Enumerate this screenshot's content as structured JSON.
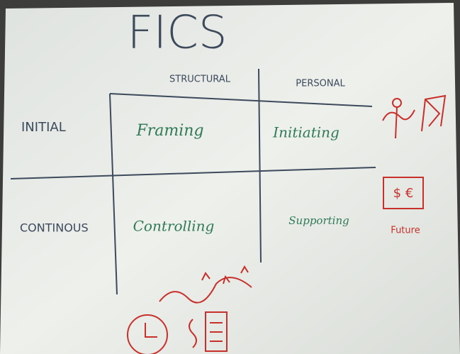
{
  "title": "FICS",
  "columns": [
    "STRUCTURAL",
    "PERSONAL"
  ],
  "rows": [
    {
      "label": "INITIAL",
      "cells": [
        "Framing",
        "Initiating"
      ]
    },
    {
      "label": "CONTINOUS",
      "cells": [
        "Controlling",
        "Supporting"
      ]
    }
  ],
  "notes": {
    "money": "$ €",
    "future": "Future"
  }
}
